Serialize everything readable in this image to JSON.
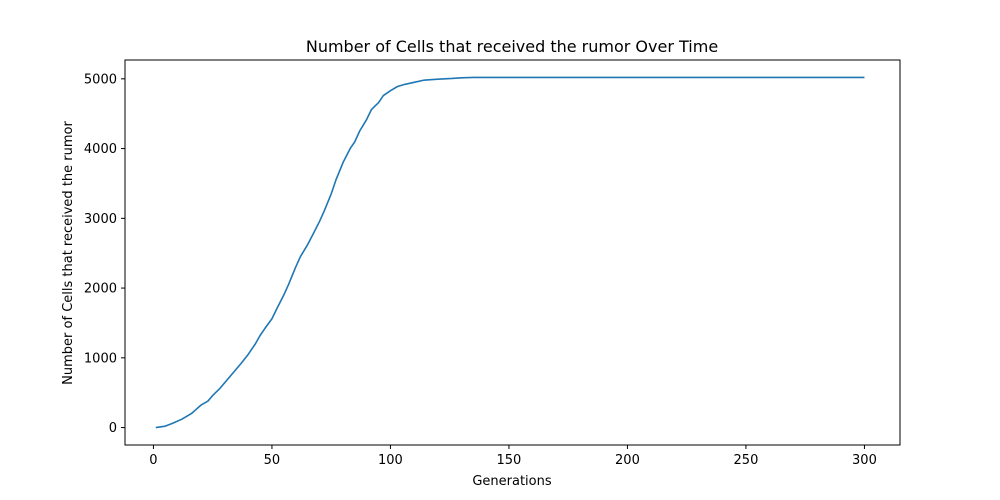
{
  "chart_data": {
    "type": "line",
    "title": "Number of Cells that received the rumor Over Time",
    "xlabel": "Generations",
    "ylabel": "Number of Cells that received the rumor",
    "xlim": [
      -12,
      315
    ],
    "ylim": [
      -250,
      5270
    ],
    "x_ticks": [
      0,
      50,
      100,
      150,
      200,
      250,
      300
    ],
    "y_ticks": [
      0,
      1000,
      2000,
      3000,
      4000,
      5000
    ],
    "grid": false,
    "legend": "none",
    "colors": {
      "line": "#1f77b4",
      "axes": "#000000"
    },
    "series": [
      {
        "x": [
          1,
          5,
          8,
          12,
          16,
          18,
          20,
          23,
          25,
          28,
          31,
          34,
          37,
          40,
          43,
          45,
          47,
          50,
          52,
          55,
          57,
          60,
          62,
          65,
          67,
          70,
          72,
          75,
          77,
          80,
          83,
          85,
          87,
          90,
          92,
          95,
          97,
          100,
          103,
          106,
          110,
          114,
          120,
          126,
          130,
          135,
          140,
          150,
          200,
          250,
          300
        ],
        "y": [
          0,
          20,
          60,
          120,
          200,
          260,
          320,
          380,
          460,
          560,
          680,
          800,
          920,
          1050,
          1200,
          1320,
          1420,
          1560,
          1700,
          1900,
          2050,
          2300,
          2450,
          2620,
          2750,
          2950,
          3100,
          3350,
          3550,
          3800,
          4000,
          4100,
          4250,
          4420,
          4560,
          4660,
          4760,
          4830,
          4890,
          4920,
          4950,
          4980,
          4995,
          5005,
          5015,
          5020,
          5020,
          5020,
          5020,
          5020,
          5020
        ]
      }
    ]
  }
}
